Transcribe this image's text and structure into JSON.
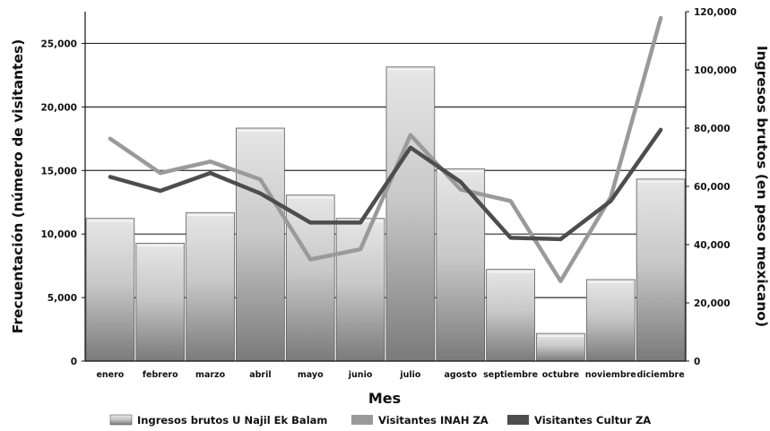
{
  "chart_data": {
    "type": "bar",
    "xlabel": "Mes",
    "ylabel_left": "Frecuentación (número de visitantes)",
    "ylabel_right": "Ingresos brutos (en peso mexicano)",
    "categories": [
      "enero",
      "febrero",
      "marzo",
      "abril",
      "mayo",
      "junio",
      "julio",
      "agosto",
      "septiembre",
      "octubre",
      "noviembre",
      "diciembre"
    ],
    "left_axis": {
      "min": 0,
      "max": 27500,
      "ticks": [
        0,
        5000,
        10000,
        15000,
        20000,
        25000
      ],
      "tick_labels": [
        "0",
        "5,000",
        "10,000",
        "15,000",
        "20,000",
        "25,000"
      ]
    },
    "right_axis": {
      "min": 0,
      "max": 120000,
      "ticks": [
        0,
        20000,
        40000,
        60000,
        80000,
        100000,
        120000
      ],
      "tick_labels": [
        "0",
        "20,000",
        "40,000",
        "60,000",
        "80,000",
        "100,000",
        "120,000"
      ]
    },
    "grid": "horizontal",
    "legend_position": "bottom",
    "series": [
      {
        "name": "Ingresos brutos U Najil Ek Balam",
        "kind": "bar",
        "axis": "right",
        "color": "#bcbcbc",
        "values": [
          49000,
          40500,
          51000,
          80000,
          57000,
          49000,
          101000,
          66000,
          31500,
          9500,
          28000,
          62500
        ]
      },
      {
        "name": "Visitantes INAH ZA",
        "kind": "line",
        "axis": "left",
        "color": "#9a9a9a",
        "values": [
          17500,
          14800,
          15700,
          14300,
          8000,
          8800,
          17800,
          13500,
          12600,
          6300,
          12900,
          27000
        ]
      },
      {
        "name": "Visitantes Cultur ZA",
        "kind": "line",
        "axis": "left",
        "color": "#4d4d4d",
        "values": [
          14500,
          13400,
          14800,
          13200,
          10900,
          10900,
          16800,
          14100,
          9700,
          9600,
          12600,
          18200
        ]
      }
    ]
  }
}
